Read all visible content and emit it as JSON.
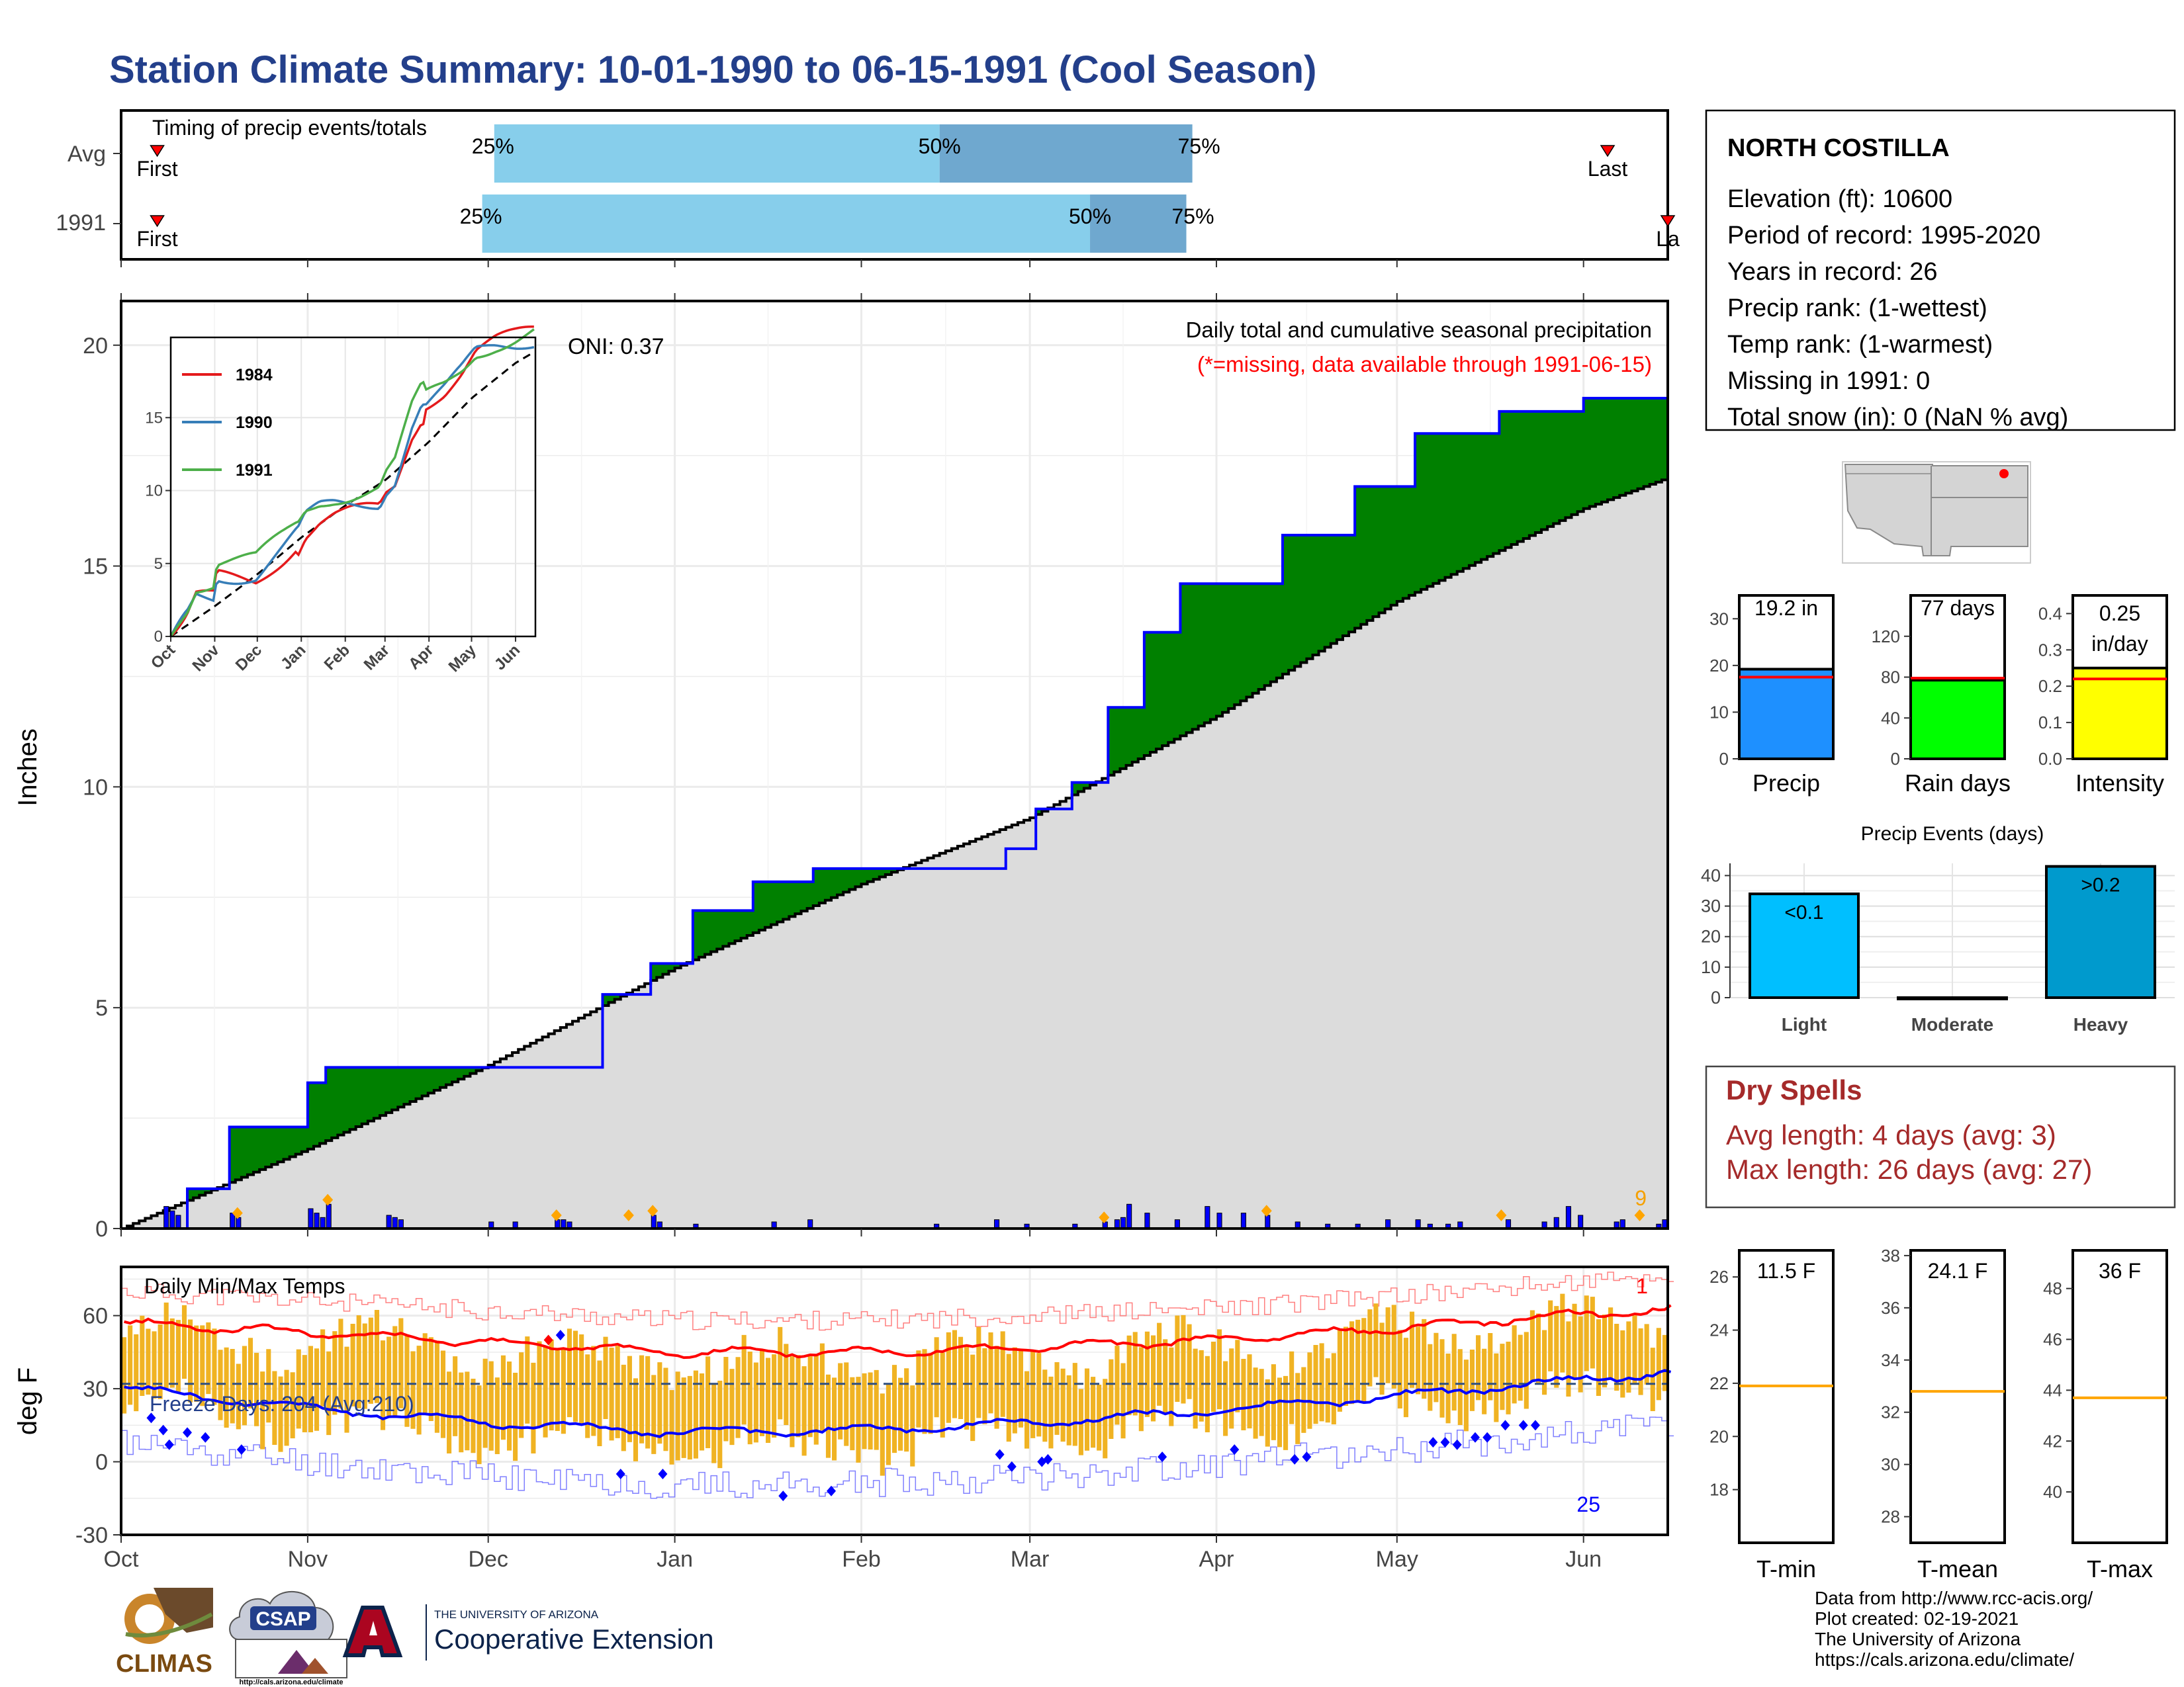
{
  "title": "Station Climate Summary: 10-01-1990 to 06-15-1991 (Cool Season)",
  "colors": {
    "title": "#233f8b",
    "q1": "#87ceeb",
    "q2": "#6fa8cf",
    "green": "#008000",
    "brown": "#7a4a10",
    "gray_fill": "#dcdcdc",
    "bars": "#0000ff",
    "temp_bar": "#f0b323",
    "avg_max": "#ff0000",
    "avg_min": "#0000ff",
    "dry": "#a52a2a"
  },
  "timing": {
    "label": "Timing of precip events/totals",
    "rows": [
      {
        "name": "Avg",
        "first": "First",
        "last": "Last",
        "p25": "25%",
        "p50": "50%",
        "p75": "75%",
        "q25": "1990-12-02",
        "q50": "1991-02-14",
        "q75": "1991-03-28",
        "first_date": "1990-10-07",
        "last_date": "1991-06-05"
      },
      {
        "name": "1991",
        "first": "First",
        "last": "La",
        "p25": "25%",
        "p50": "50%",
        "p75": "75%",
        "q25": "1990-11-30",
        "q50": "1991-03-11",
        "q75": "1991-03-27",
        "first_date": "1990-10-07",
        "last_date": "1991-06-15"
      }
    ]
  },
  "precip_panel": {
    "ylabel": "Inches",
    "heading": "Daily total and cumulative seasonal precipitation",
    "missing_note": "(*=missing, data available through 1991-06-15)",
    "oni": "ONI: 0.37",
    "corner_count": "9",
    "yticks": [
      "0",
      "5",
      "10",
      "15",
      "20"
    ]
  },
  "inset": {
    "legend": [
      "1984",
      "1990",
      "1991"
    ],
    "legend_colors": [
      "#e41a1c",
      "#377eb8",
      "#4daf4a"
    ],
    "yticks": [
      "0",
      "5",
      "10",
      "15"
    ],
    "xticks": [
      "Oct",
      "Nov",
      "Dec",
      "Jan",
      "Feb",
      "Mar",
      "Apr",
      "May",
      "Jun"
    ]
  },
  "temp_panel": {
    "heading": "Daily Min/Max Temps",
    "ylabel": "deg F",
    "freeze": "Freeze Days: 204 (Avg:210)",
    "max_count": "1",
    "min_count": "25",
    "yticks": [
      "-30",
      "0",
      "30",
      "60"
    ]
  },
  "month_ticks": [
    "Oct",
    "Nov",
    "Dec",
    "Jan",
    "Feb",
    "Mar",
    "Apr",
    "May",
    "Jun"
  ],
  "station": {
    "name": "NORTH COSTILLA",
    "lines": [
      "Elevation (ft): 10600",
      "Period of record: 1995-2020",
      "Years in record: 26",
      "Precip rank:  (1-wettest)",
      "Temp rank:  (1-warmest)",
      "Missing in 1991: 0",
      "Total snow (in): 0 (NaN % avg)"
    ]
  },
  "mini_bars": [
    {
      "label": "Precip",
      "value_text": "19.2 in",
      "value": 19.2,
      "avg": 17.5,
      "ymax": 35,
      "ticks": [
        "0",
        "10",
        "20",
        "30"
      ],
      "color": "#1e90ff"
    },
    {
      "label": "Rain days",
      "value_text": "77 days",
      "value": 77,
      "avg": 79,
      "ymax": 160,
      "ticks": [
        "0",
        "40",
        "80",
        "120"
      ],
      "color": "#00ff00"
    },
    {
      "label": "Intensity",
      "value_text": "0.25 in/day",
      "value": 0.25,
      "avg": 0.22,
      "ymax": 0.45,
      "ticks": [
        "0.0",
        "0.1",
        "0.2",
        "0.3",
        "0.4"
      ],
      "color": "#ffff00"
    }
  ],
  "events": {
    "title": "Precip Events (days)",
    "categories": [
      "Light",
      "Moderate",
      "Heavy"
    ],
    "values": [
      34,
      0,
      43
    ],
    "labels": [
      "<0.1",
      "",
      ">0.2"
    ],
    "colors": [
      "#00bfff",
      "#0000cd",
      "#009acd"
    ],
    "ticks": [
      "0",
      "10",
      "20",
      "30",
      "40"
    ]
  },
  "dry_spells": {
    "title": "Dry Spells",
    "avg": "Avg length: 4 days (avg: 3)",
    "max": "Max length: 26 days (avg: 27)"
  },
  "temp_boxes": [
    {
      "label": "T-min",
      "value_text": "11.5 F",
      "avg": 21.9,
      "ymin": 16,
      "ymax": 27,
      "ticks": [
        "18",
        "20",
        "22",
        "24",
        "26"
      ]
    },
    {
      "label": "T-mean",
      "value_text": "24.1 F",
      "avg": 32.8,
      "ymin": 27,
      "ymax": 38.2,
      "ticks": [
        "28",
        "30",
        "32",
        "34",
        "36",
        "38"
      ]
    },
    {
      "label": "T-max",
      "value_text": "36 F",
      "avg": 43.7,
      "ymin": 38,
      "ymax": 49.5,
      "ticks": [
        "40",
        "42",
        "44",
        "46",
        "48"
      ]
    }
  ],
  "credits": [
    "Data from http://www.rcc-acis.org/",
    "Plot created: 02-19-2021",
    "The University of Arizona",
    "https://cals.arizona.edu/climate/"
  ],
  "logos": {
    "climas": "CLIMAS",
    "csap": "CSAP",
    "csap_url": "http://cals.arizona.edu/climate",
    "ua_small": "THE UNIVERSITY OF ARIZONA",
    "ua_big": "Cooperative Extension"
  },
  "chart_data": [
    {
      "type": "area",
      "title": "Daily total and cumulative seasonal precipitation",
      "ylabel": "Inches",
      "ylim": [
        0,
        21
      ],
      "x_range": [
        "1990-10-01",
        "1991-06-15"
      ],
      "series": [
        {
          "name": "",
          "x": [
            "1990-10-01",
            "1990-10-12",
            "1990-10-19",
            "1990-10-31",
            "1990-11-01",
            "1990-11-04",
            "1990-11-30",
            "1990-12-20",
            "1990-12-28",
            "1991-01-04",
            "1991-01-14",
            "1991-01-24",
            "1991-02-25",
            "1991-03-02",
            "1991-03-08",
            "1991-03-14",
            "1991-03-20",
            "1991-03-26",
            "1991-04-12",
            "1991-04-24",
            "1991-05-04",
            "1991-05-18",
            "1991-06-01",
            "1991-06-15"
          ],
          "y": [
            0,
            0.9,
            2.3,
            2.3,
            3.3,
            3.65,
            3.65,
            5.3,
            6.0,
            7.2,
            7.85,
            8.15,
            8.6,
            9.5,
            10.1,
            11.8,
            13.5,
            14.6,
            15.7,
            16.8,
            18.0,
            18.5,
            18.8,
            19.2
          ]
        },
        {
          "name": "",
          "x": [
            "1990-10-01",
            "1990-11-01",
            "1990-12-01",
            "1991-01-01",
            "1991-02-01",
            "1991-03-01",
            "1991-04-01",
            "1991-05-01",
            "1991-06-01",
            "1991-06-15"
          ],
          "y": [
            0,
            1.8,
            3.7,
            5.9,
            7.8,
            9.3,
            11.6,
            14.2,
            16.3,
            17.0
          ]
        }
      ]
    },
    {
      "type": "line",
      "title": "",
      "xlabel": "",
      "ylim": [
        -30,
        80
      ],
      "series": [
        {
          "name": "",
          "x": [
            "1990-10-01",
            "1990-11-01",
            "1990-12-01",
            "1991-01-01",
            "1991-02-01",
            "1991-03-01",
            "1991-04-01",
            "1991-05-01",
            "1991-06-01",
            "1991-06-15"
          ],
          "y": [
            57,
            53,
            49,
            45,
            45,
            47,
            50,
            55,
            61,
            62
          ]
        },
        {
          "name": "",
          "x": [
            "1990-10-01",
            "1990-11-01",
            "1990-12-01",
            "1991-01-01",
            "1991-02-01",
            "1991-03-01",
            "1991-04-01",
            "1991-05-01",
            "1991-06-01",
            "1991-06-15"
          ],
          "y": [
            30,
            22,
            16,
            12,
            13,
            16,
            21,
            27,
            34,
            37
          ]
        }
      ]
    },
    {
      "type": "bar",
      "title": "Precip Events (days)",
      "categories": [
        "Light",
        "Moderate",
        "Heavy"
      ],
      "values": [
        34,
        0,
        43
      ]
    }
  ]
}
